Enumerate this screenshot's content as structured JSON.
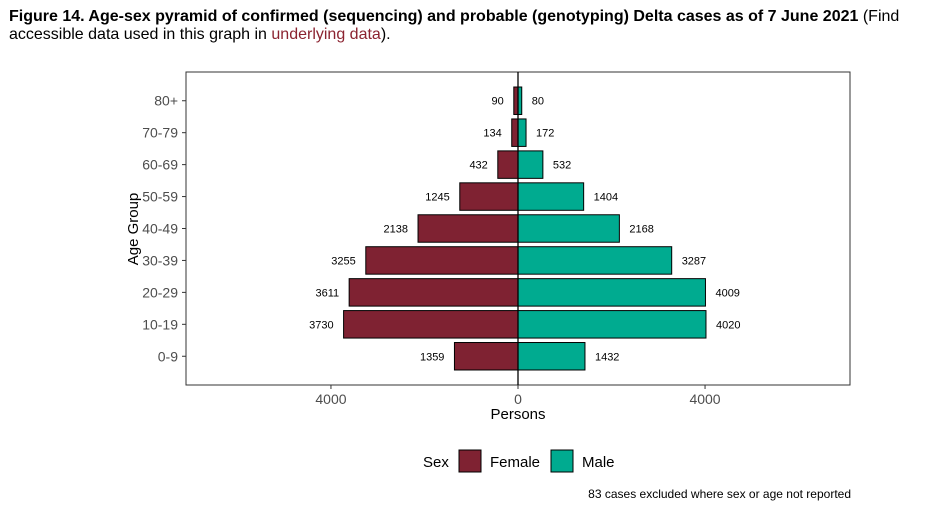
{
  "header": {
    "title_bold": "Figure 14. Age-sex pyramid of confirmed (sequencing) and probable (genotyping) Delta cases as of 7 June 2021",
    "title_rest_1": " (Find",
    "title_line2_a": "accessible data used in this graph in ",
    "title_link": "underlying data",
    "title_line2_b": ")."
  },
  "chart_data": {
    "type": "bar",
    "orientation": "horizontal-pyramid",
    "categories": [
      "80+",
      "70-79",
      "60-69",
      "50-59",
      "40-49",
      "30-39",
      "20-29",
      "10-19",
      "0-9"
    ],
    "series": [
      {
        "name": "Female",
        "color": "#7f2232",
        "values": [
          90,
          134,
          432,
          1245,
          2138,
          3255,
          3611,
          3730,
          1359
        ]
      },
      {
        "name": "Male",
        "color": "#00ab90",
        "values": [
          80,
          172,
          532,
          1404,
          2168,
          3287,
          4009,
          4020,
          1432
        ]
      }
    ],
    "xlabel": "Persons",
    "ylabel": "Age Group",
    "xlim": [
      -7100,
      7100
    ],
    "xticks": [
      -4000,
      0,
      4000
    ],
    "xtick_labels": [
      "4000",
      "0",
      "4000"
    ],
    "legend_title": "Sex",
    "legend_position": "bottom",
    "grid": false
  },
  "footnote": "83 cases excluded where sex or age not reported"
}
